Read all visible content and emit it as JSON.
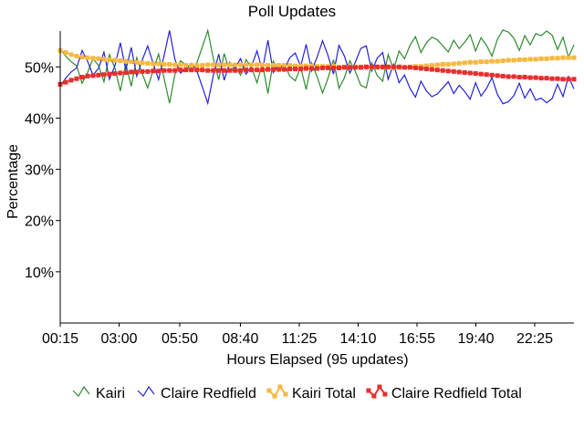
{
  "chart_data": {
    "type": "line",
    "title": "Poll Updates",
    "xlabel": "Hours Elapsed (95 updates)",
    "ylabel": "Percentage",
    "ylim": [
      0,
      57
    ],
    "xlim": [
      0.25,
      24.25
    ],
    "x_ticks": [
      {
        "x": 0.25,
        "label": "00:15"
      },
      {
        "x": 3.0,
        "label": "03:00"
      },
      {
        "x": 5.8333,
        "label": "05:50"
      },
      {
        "x": 8.6667,
        "label": "08:40"
      },
      {
        "x": 11.4167,
        "label": "11:25"
      },
      {
        "x": 14.1667,
        "label": "14:10"
      },
      {
        "x": 16.9167,
        "label": "16:55"
      },
      {
        "x": 19.6667,
        "label": "19:40"
      },
      {
        "x": 22.4167,
        "label": "22:25"
      }
    ],
    "y_ticks": [
      {
        "y": 10,
        "label": "10%"
      },
      {
        "y": 20,
        "label": "20%"
      },
      {
        "y": 30,
        "label": "30%"
      },
      {
        "y": 40,
        "label": "40%"
      },
      {
        "y": 50,
        "label": "50%"
      }
    ],
    "grid": false,
    "legend_position": "bottom",
    "series": [
      {
        "name": "Kairi",
        "color": "#2e8b2e",
        "marker": "line",
        "values": [
          53.5,
          52.1,
          51.0,
          50.2,
          46.8,
          48.9,
          51.6,
          50.3,
          47.1,
          52.4,
          49.8,
          45.3,
          50.6,
          46.2,
          51.8,
          48.7,
          45.9,
          49.3,
          52.5,
          47.8,
          42.9,
          48.6,
          51.2,
          50.4,
          49.3,
          50.8,
          53.9,
          57.1,
          51.7,
          47.5,
          52.6,
          49.1,
          50.2,
          48.4,
          51.4,
          49.9,
          46.9,
          50.7,
          44.8,
          51.1,
          49.4,
          50.6,
          48.2,
          47.3,
          49.9,
          45.6,
          50.8,
          48.1,
          44.9,
          47.8,
          51.4,
          45.8,
          47.9,
          51.2,
          49.1,
          46.4,
          45.9,
          50.8,
          48.3,
          47.2,
          52.4,
          49.5,
          53.1,
          51.6,
          54.2,
          55.9,
          52.8,
          54.7,
          55.8,
          55.3,
          54.1,
          52.9,
          55.2,
          53.6,
          54.8,
          56.3,
          53.1,
          55.7,
          54.2,
          52.1,
          55.4,
          57.2,
          56.8,
          55.6,
          53.2,
          56.1,
          54.3,
          56.5,
          56.1,
          57.0,
          56.2,
          53.4,
          55.8,
          51.9,
          54.3
        ]
      },
      {
        "name": "Claire Redfield",
        "color": "#2323d6",
        "marker": "line",
        "values": [
          46.2,
          47.8,
          49.0,
          49.8,
          53.2,
          51.1,
          48.4,
          49.7,
          52.9,
          47.6,
          50.2,
          54.7,
          49.4,
          53.8,
          48.2,
          51.3,
          54.1,
          50.7,
          47.5,
          52.2,
          57.1,
          51.4,
          48.8,
          49.6,
          50.7,
          49.2,
          46.1,
          42.9,
          48.3,
          52.5,
          47.4,
          50.9,
          49.8,
          51.6,
          48.6,
          50.1,
          53.1,
          49.3,
          55.2,
          48.9,
          50.6,
          49.4,
          51.8,
          52.7,
          50.1,
          54.4,
          49.2,
          51.9,
          55.1,
          52.2,
          48.6,
          54.2,
          52.1,
          48.8,
          50.9,
          53.6,
          54.1,
          49.2,
          51.7,
          52.8,
          47.6,
          50.5,
          46.9,
          48.4,
          45.8,
          44.1,
          47.2,
          45.3,
          44.2,
          44.7,
          45.9,
          47.1,
          44.8,
          46.4,
          45.2,
          43.7,
          46.9,
          44.3,
          45.8,
          47.9,
          44.6,
          42.8,
          43.2,
          44.4,
          46.8,
          43.9,
          45.7,
          43.5,
          43.9,
          43.0,
          43.8,
          46.6,
          44.2,
          48.1,
          45.7
        ]
      },
      {
        "name": "Kairi Total",
        "color": "#f5b942",
        "marker": "square",
        "values": [
          53.2,
          52.8,
          52.4,
          52.1,
          51.9,
          51.8,
          51.7,
          51.6,
          51.5,
          51.4,
          51.3,
          51.2,
          51.1,
          51.0,
          50.9,
          50.8,
          50.7,
          50.6,
          50.6,
          50.5,
          50.5,
          50.4,
          50.4,
          50.3,
          50.3,
          50.3,
          50.3,
          50.4,
          50.4,
          50.4,
          50.4,
          50.4,
          50.4,
          50.4,
          50.4,
          50.4,
          50.4,
          50.4,
          50.3,
          50.3,
          50.3,
          50.3,
          50.3,
          50.2,
          50.2,
          50.2,
          50.2,
          50.1,
          50.1,
          50.1,
          50.1,
          50.0,
          50.0,
          50.0,
          50.0,
          50.0,
          49.9,
          49.9,
          49.9,
          49.9,
          49.9,
          49.9,
          49.9,
          49.9,
          50.0,
          50.1,
          50.1,
          50.2,
          50.3,
          50.4,
          50.5,
          50.5,
          50.6,
          50.7,
          50.8,
          50.9,
          50.9,
          51.0,
          51.0,
          51.1,
          51.1,
          51.2,
          51.3,
          51.3,
          51.4,
          51.4,
          51.5,
          51.5,
          51.6,
          51.6,
          51.7,
          51.7,
          51.8,
          51.8,
          51.8
        ]
      },
      {
        "name": "Claire Redfield Total",
        "color": "#e62e2e",
        "marker": "square",
        "values": [
          46.6,
          47.0,
          47.4,
          47.7,
          48.0,
          48.2,
          48.3,
          48.4,
          48.5,
          48.6,
          48.7,
          48.8,
          48.9,
          49.0,
          49.0,
          49.1,
          49.1,
          49.2,
          49.2,
          49.3,
          49.3,
          49.3,
          49.4,
          49.4,
          49.4,
          49.4,
          49.4,
          49.3,
          49.3,
          49.3,
          49.3,
          49.3,
          49.3,
          49.3,
          49.4,
          49.4,
          49.4,
          49.4,
          49.5,
          49.5,
          49.5,
          49.5,
          49.6,
          49.6,
          49.6,
          49.7,
          49.7,
          49.7,
          49.8,
          49.8,
          49.8,
          49.8,
          49.9,
          49.9,
          49.9,
          49.9,
          50.0,
          50.0,
          50.0,
          50.0,
          50.0,
          50.0,
          50.0,
          49.9,
          49.9,
          49.8,
          49.7,
          49.6,
          49.5,
          49.4,
          49.3,
          49.2,
          49.1,
          49.0,
          48.9,
          48.8,
          48.7,
          48.6,
          48.5,
          48.4,
          48.3,
          48.2,
          48.1,
          48.1,
          48.0,
          48.0,
          47.9,
          47.9,
          47.8,
          47.8,
          47.7,
          47.7,
          47.6,
          47.6,
          47.6
        ]
      }
    ]
  }
}
